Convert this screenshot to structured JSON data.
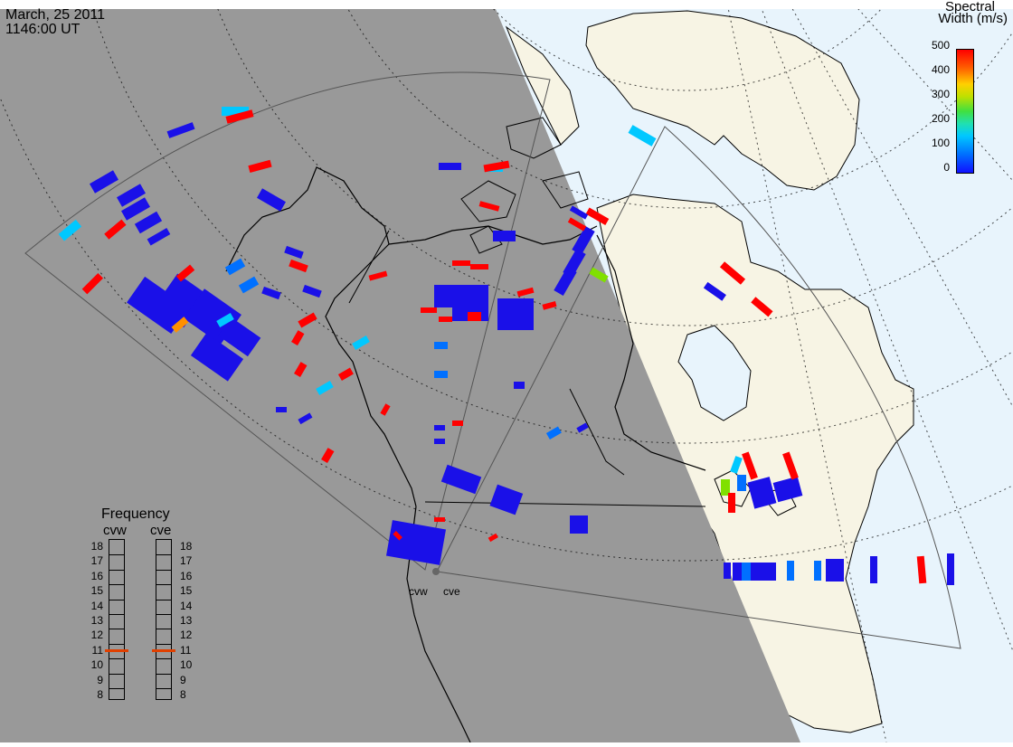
{
  "header": {
    "date": "March, 25 2011",
    "time": "1146:00 UT"
  },
  "colorbar": {
    "title_line1": "Spectral",
    "title_line2": "Width (m/s)",
    "ticks": [
      "500",
      "400",
      "300",
      "200",
      "100",
      "0"
    ],
    "colors": [
      "#1010ff",
      "#0070ff",
      "#00c0ff",
      "#20e0c0",
      "#40e040",
      "#a0e000",
      "#ffe000",
      "#ff9000",
      "#ff3000",
      "#ff0000"
    ]
  },
  "frequency_panel": {
    "title": "Frequency",
    "left_radar": "cvw",
    "right_radar": "cve",
    "ticks": [
      "18",
      "17",
      "16",
      "15",
      "14",
      "13",
      "12",
      "11",
      "10",
      "9",
      "8"
    ],
    "marker_value": 11,
    "marker_color": "#e04000"
  },
  "radars": {
    "west_label": "cvw",
    "east_label": "cve"
  },
  "map": {
    "night_color": "#999999",
    "day_ocean_color": "#e8f4fc",
    "day_land_color": "#f7f4e4",
    "coast_color": "#000000"
  }
}
